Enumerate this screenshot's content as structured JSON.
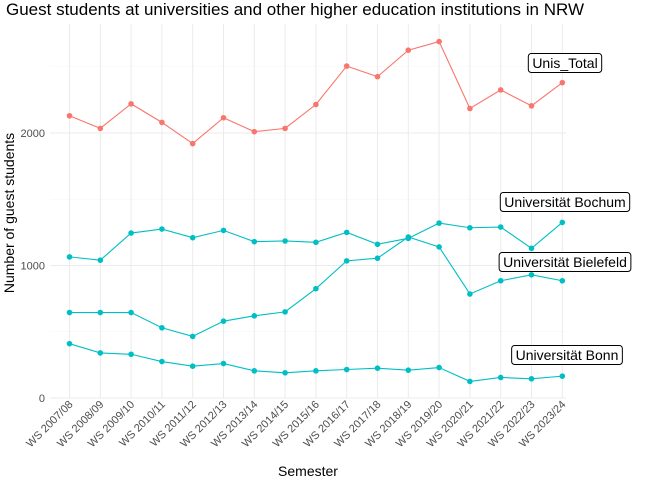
{
  "chart_data": {
    "type": "line",
    "title": "Guest students at universities and other higher education institutions in NRW",
    "xlabel": "Semester",
    "ylabel": "Number of guest students",
    "categories": [
      "WS 2007/08",
      "WS 2008/09",
      "WS 2009/10",
      "WS 2010/11",
      "WS 2011/12",
      "WS 2012/13",
      "WS 2013/14",
      "WS 2014/15",
      "WS 2015/16",
      "WS 2016/17",
      "WS 2017/18",
      "WS 2018/19",
      "WS 2019/20",
      "WS 2020/21",
      "WS 2021/22",
      "WS 2022/23",
      "WS 2023/24"
    ],
    "ylim": [
      0,
      2800
    ],
    "yticks": [
      0,
      1000,
      2000
    ],
    "grid": true,
    "legend": "none",
    "series": [
      {
        "name": "Unis_Total",
        "color": "#F8766D",
        "values": [
          2130,
          2035,
          2220,
          2080,
          1920,
          2115,
          2010,
          2035,
          2215,
          2505,
          2425,
          2625,
          2690,
          2185,
          2325,
          2205,
          2380
        ]
      },
      {
        "name": "Universität Bochum",
        "color": "#00BFC4",
        "values": [
          1065,
          1040,
          1245,
          1275,
          1210,
          1265,
          1180,
          1185,
          1175,
          1250,
          1160,
          1205,
          1320,
          1285,
          1290,
          1130,
          1325
        ]
      },
      {
        "name": "Universität Bielefeld",
        "color": "#00BFC4",
        "values": [
          645,
          645,
          645,
          530,
          465,
          580,
          620,
          650,
          825,
          1035,
          1055,
          1215,
          1140,
          785,
          885,
          930,
          885
        ]
      },
      {
        "name": "Universität Bonn",
        "color": "#00BFC4",
        "values": [
          410,
          340,
          330,
          275,
          240,
          260,
          205,
          190,
          205,
          215,
          225,
          210,
          230,
          125,
          155,
          145,
          165
        ]
      }
    ]
  }
}
